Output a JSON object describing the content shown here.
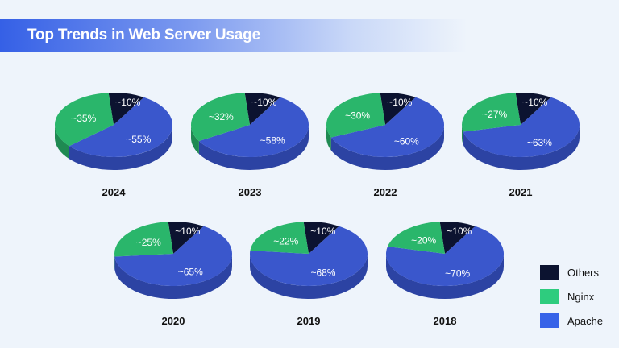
{
  "title": "Top Trends in Web Server Usage",
  "colors": {
    "Others": "#0c1330",
    "Nginx": "#2ab66b",
    "Apache": "#3a57cc",
    "legend_Nginx": "#2ecc7e",
    "legend_Apache": "#3763e8"
  },
  "legend": [
    {
      "label": "Others",
      "color": "#0c1330"
    },
    {
      "label": "Nginx",
      "color": "#2ecc7e"
    },
    {
      "label": "Apache",
      "color": "#3763e8"
    }
  ],
  "chart_data": {
    "type": "pie",
    "title": "Top Trends in Web Server Usage",
    "series_names": [
      "Others",
      "Nginx",
      "Apache"
    ],
    "legend_position": "bottom-right",
    "pies": [
      {
        "year": "2024",
        "values": {
          "Others": 10,
          "Nginx": 35,
          "Apache": 55
        },
        "labels": {
          "Others": "~10%",
          "Nginx": "~35%",
          "Apache": "~55%"
        }
      },
      {
        "year": "2023",
        "values": {
          "Others": 10,
          "Nginx": 32,
          "Apache": 58
        },
        "labels": {
          "Others": "~10%",
          "Nginx": "~32%",
          "Apache": "~58%"
        }
      },
      {
        "year": "2022",
        "values": {
          "Others": 10,
          "Nginx": 30,
          "Apache": 60
        },
        "labels": {
          "Others": "~10%",
          "Nginx": "~30%",
          "Apache": "~60%"
        }
      },
      {
        "year": "2021",
        "values": {
          "Others": 10,
          "Nginx": 27,
          "Apache": 63
        },
        "labels": {
          "Others": "~10%",
          "Nginx": "~27%",
          "Apache": "~63%"
        }
      },
      {
        "year": "2020",
        "values": {
          "Others": 10,
          "Nginx": 25,
          "Apache": 65
        },
        "labels": {
          "Others": "~10%",
          "Nginx": "~25%",
          "Apache": "~65%"
        }
      },
      {
        "year": "2019",
        "values": {
          "Others": 10,
          "Nginx": 22,
          "Apache": 68
        },
        "labels": {
          "Others": "~10%",
          "Nginx": "~22%",
          "Apache": "~68%"
        }
      },
      {
        "year": "2018",
        "values": {
          "Others": 10,
          "Nginx": 20,
          "Apache": 70
        },
        "labels": {
          "Others": "~10%",
          "Nginx": "~20%",
          "Apache": "~70%"
        }
      }
    ]
  }
}
